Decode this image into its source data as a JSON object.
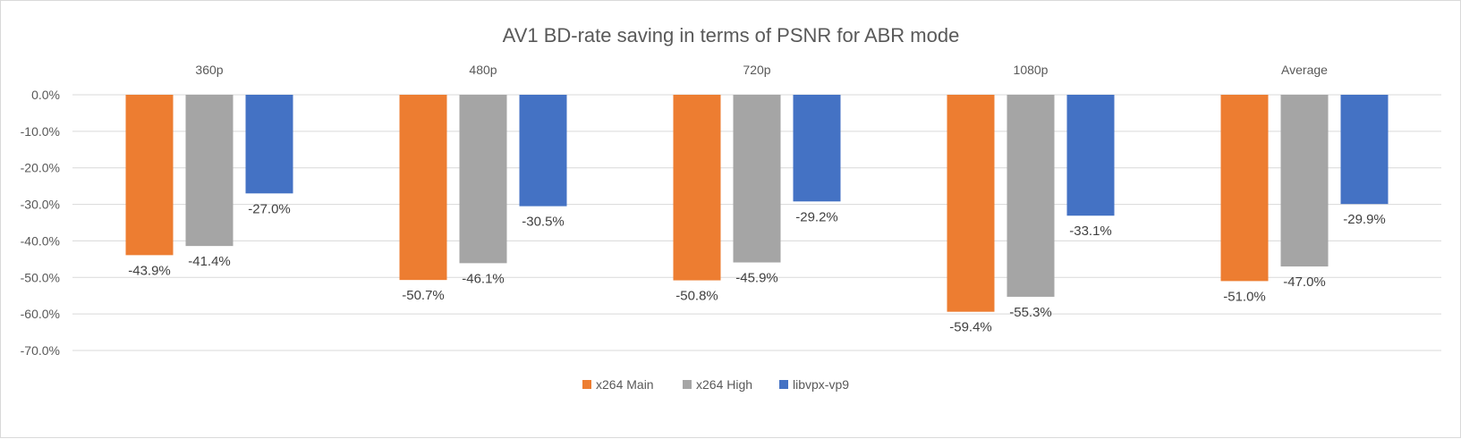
{
  "chart_data": {
    "type": "bar",
    "title": "AV1 BD-rate saving in terms of PSNR for ABR mode",
    "xlabel": "",
    "ylabel": "",
    "categories": [
      "360p",
      "480p",
      "720p",
      "1080p",
      "Average"
    ],
    "series": [
      {
        "name": "x264 Main",
        "color": "#ED7D31",
        "values": [
          -43.9,
          -50.7,
          -50.8,
          -59.4,
          -51.0
        ]
      },
      {
        "name": "x264 High",
        "color": "#A5A5A5",
        "values": [
          -41.4,
          -46.1,
          -45.9,
          -55.3,
          -47.0
        ]
      },
      {
        "name": "libvpx-vp9",
        "color": "#4472C4",
        "values": [
          -27.0,
          -30.5,
          -29.2,
          -33.1,
          -29.9
        ]
      }
    ],
    "value_labels": [
      [
        "-43.9%",
        "-50.7%",
        "-50.8%",
        "-59.4%",
        "-51.0%"
      ],
      [
        "-41.4%",
        "-46.1%",
        "-45.9%",
        "-55.3%",
        "-47.0%"
      ],
      [
        "-27.0%",
        "-30.5%",
        "-29.2%",
        "-33.1%",
        "-29.9%"
      ]
    ],
    "ylim": [
      -70,
      0
    ],
    "y_ticks": [
      0,
      -10,
      -20,
      -30,
      -40,
      -50,
      -60,
      -70
    ],
    "y_tick_labels": [
      "0.0%",
      "-10.0%",
      "-20.0%",
      "-30.0%",
      "-40.0%",
      "-50.0%",
      "-60.0%",
      "-70.0%"
    ],
    "category_labels_position": "top",
    "grid": true,
    "legend": "bottom"
  }
}
